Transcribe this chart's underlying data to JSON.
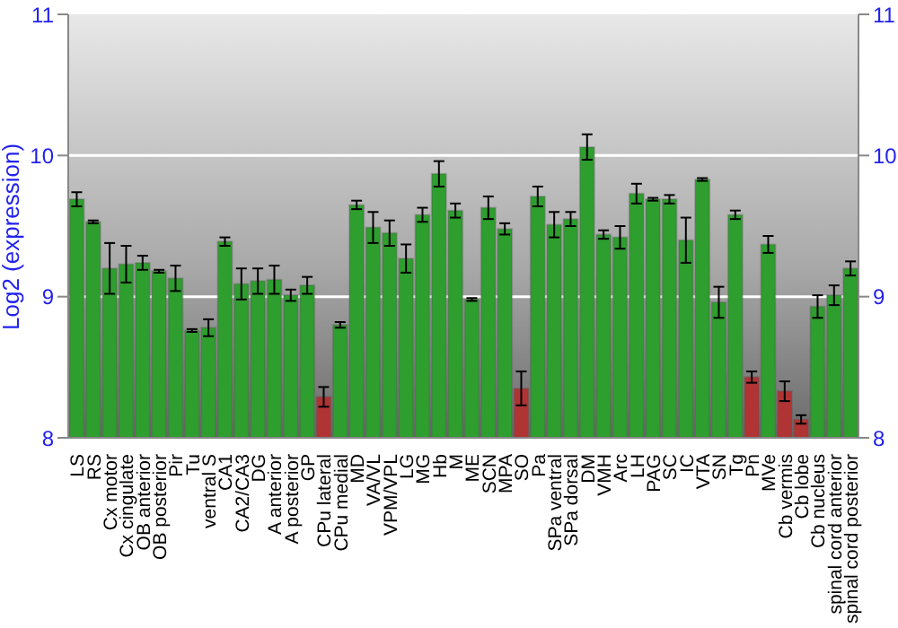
{
  "chart_data": {
    "type": "bar",
    "ylabel": "Log2 (expression)",
    "categories": [
      "LS",
      "RS",
      "Cx motor",
      "Cx cingulate",
      "OB anterior",
      "OB posterior",
      "Pir",
      "Tu",
      "ventral S",
      "CA1",
      "CA2/CA3",
      "DG",
      "A anterior",
      "A posterior",
      "GP",
      "CPu lateral",
      "CPu medial",
      "MD",
      "VA/VL",
      "VPM/VPL",
      "LG",
      "MG",
      "Hb",
      "M",
      "ME",
      "SCN",
      "MPA",
      "SO",
      "Pa",
      "SPa ventral",
      "SPa dorsal",
      "DM",
      "VMH",
      "Arc",
      "LH",
      "PAG",
      "SC",
      "IC",
      "VTA",
      "SN",
      "Tg",
      "Pn",
      "MVe",
      "Cb vermis",
      "Cb lobe",
      "Cb nucleus",
      "spinal cord anterior",
      "spinal cord posterior"
    ],
    "values": [
      9.69,
      9.53,
      9.2,
      9.23,
      9.24,
      9.18,
      9.13,
      8.76,
      8.78,
      9.39,
      9.09,
      9.11,
      9.12,
      9.01,
      9.08,
      8.29,
      8.8,
      9.65,
      9.49,
      9.45,
      9.27,
      9.58,
      9.87,
      9.61,
      8.98,
      9.63,
      9.48,
      8.35,
      9.71,
      9.51,
      9.55,
      10.06,
      9.44,
      9.42,
      9.73,
      9.69,
      9.69,
      9.4,
      9.83,
      8.96,
      9.58,
      8.43,
      9.37,
      8.33,
      8.13,
      8.93,
      9.01,
      9.2
    ],
    "errors": [
      0.05,
      0.01,
      0.18,
      0.13,
      0.05,
      0.01,
      0.09,
      0.01,
      0.06,
      0.03,
      0.11,
      0.09,
      0.1,
      0.04,
      0.06,
      0.07,
      0.02,
      0.03,
      0.11,
      0.09,
      0.1,
      0.05,
      0.09,
      0.05,
      0.01,
      0.08,
      0.04,
      0.12,
      0.07,
      0.09,
      0.05,
      0.09,
      0.03,
      0.08,
      0.07,
      0.01,
      0.03,
      0.16,
      0.01,
      0.11,
      0.03,
      0.04,
      0.06,
      0.07,
      0.03,
      0.08,
      0.07,
      0.05
    ],
    "colors": [
      "#2e9e2e",
      "#2e9e2e",
      "#2e9e2e",
      "#2e9e2e",
      "#2e9e2e",
      "#2e9e2e",
      "#2e9e2e",
      "#2e9e2e",
      "#2e9e2e",
      "#2e9e2e",
      "#2e9e2e",
      "#2e9e2e",
      "#2e9e2e",
      "#2e9e2e",
      "#2e9e2e",
      "#b03434",
      "#2e9e2e",
      "#2e9e2e",
      "#2e9e2e",
      "#2e9e2e",
      "#2e9e2e",
      "#2e9e2e",
      "#2e9e2e",
      "#2e9e2e",
      "#2e9e2e",
      "#2e9e2e",
      "#2e9e2e",
      "#b03434",
      "#2e9e2e",
      "#2e9e2e",
      "#2e9e2e",
      "#2e9e2e",
      "#2e9e2e",
      "#2e9e2e",
      "#2e9e2e",
      "#2e9e2e",
      "#2e9e2e",
      "#2e9e2e",
      "#2e9e2e",
      "#2e9e2e",
      "#2e9e2e",
      "#b03434",
      "#2e9e2e",
      "#b03434",
      "#b03434",
      "#2e9e2e",
      "#2e9e2e",
      "#2e9e2e"
    ],
    "ylim": [
      8,
      11
    ],
    "yticks": [
      8,
      9,
      10,
      11
    ],
    "y2lim": [
      8,
      11
    ],
    "y2ticks": [
      8,
      9,
      10,
      11
    ],
    "grid": "y"
  }
}
